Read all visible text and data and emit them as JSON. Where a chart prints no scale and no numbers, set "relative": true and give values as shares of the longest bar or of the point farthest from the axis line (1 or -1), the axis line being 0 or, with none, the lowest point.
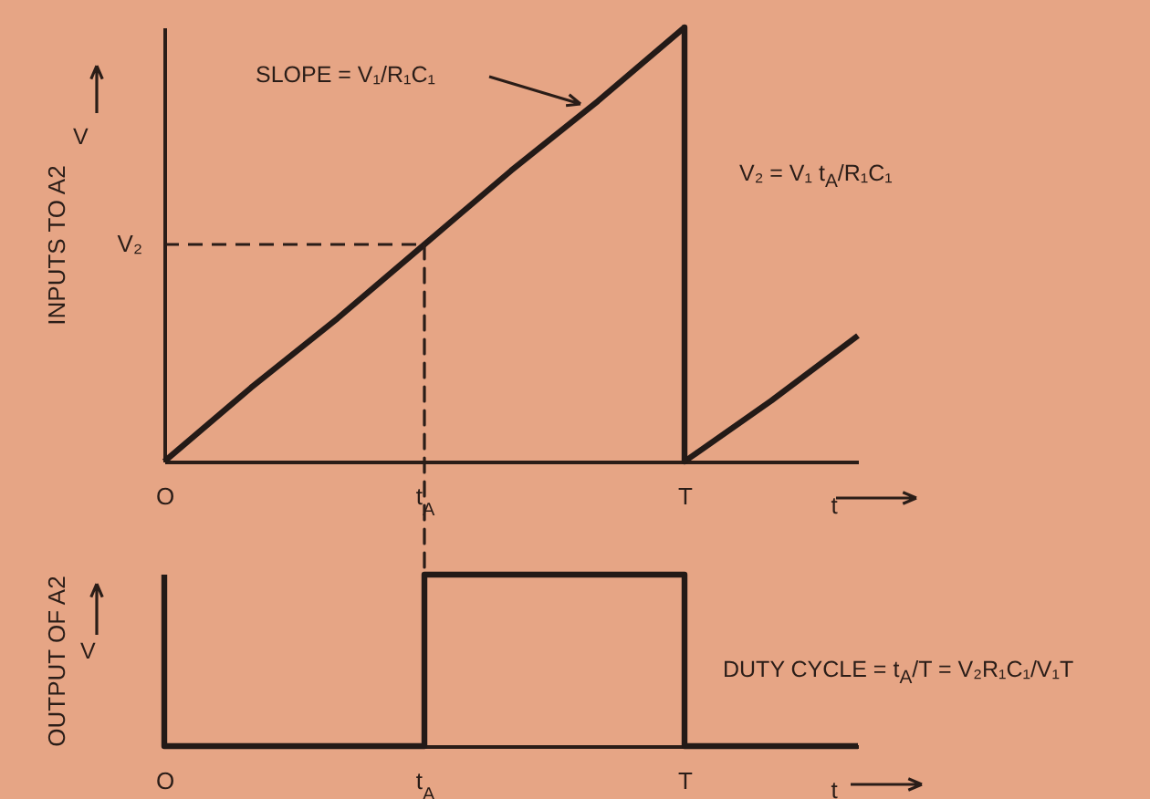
{
  "chart_data": [
    {
      "type": "line",
      "relative": true,
      "ylabel": "INPUTS TO A2",
      "xlabel": "t",
      "categories": [
        "O",
        null,
        null,
        "t$_{A}$",
        null,
        null,
        "T",
        null,
        null
      ],
      "series": [
        {
          "color": "#231a17",
          "values": [
            0,
            0.17,
            0.33,
            0.5,
            0.67,
            0.83,
            1,
            null,
            null
          ]
        },
        {
          "color": "#231a17",
          "values": [
            null,
            null,
            null,
            null,
            null,
            null,
            0,
            0.14,
            0.29
          ]
        }
      ],
      "ref_lines": [
        {
          "axis": "x",
          "value": "T",
          "color": "#231a17",
          "line_style": "solid"
        },
        {
          "axis": "y",
          "value": 0.5,
          "label": "V₂",
          "line_style": "dashed"
        },
        {
          "axis": "x",
          "value": "t$_{A}$",
          "line_style": "dashed"
        }
      ],
      "annotations": [
        "SLOPE = V₁/R₁C₁",
        "V",
        "V₂ = V₁ t$_{A}$/R₁C₁"
      ]
    },
    {
      "type": "step",
      "relative": true,
      "ylabel": "OUTPUT OF A2",
      "xlabel": "t",
      "categories": [
        "O",
        null,
        null,
        "t$_{A}$",
        null,
        null,
        "T",
        null,
        null
      ],
      "series": [
        {
          "color": "#231a17",
          "values": [
            1,
            0,
            0,
            0,
            1,
            1,
            1,
            0,
            0
          ]
        }
      ],
      "annotations": [
        "V",
        "DUTY CYCLE = t$_{A}$/T = V₂R₁C₁/V₁T"
      ]
    }
  ]
}
